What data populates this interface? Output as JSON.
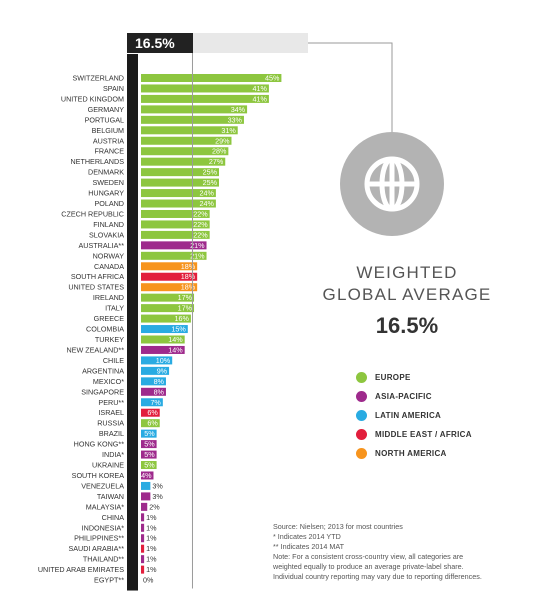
{
  "header": {
    "average_label": "16.5%"
  },
  "summary": {
    "title_line1": "WEIGHTED",
    "title_line2": "GLOBAL AVERAGE",
    "value": "16.5%"
  },
  "icons": {
    "globe": "globe-icon"
  },
  "region_colors": {
    "Europe": "#8dc63f",
    "Asia-Pacific": "#9e2a8c",
    "Latin America": "#29abe2",
    "Middle East / Africa": "#e21e3c",
    "North America": "#f7941d"
  },
  "legend": [
    {
      "label": "EUROPE",
      "color": "#8dc63f"
    },
    {
      "label": "ASIA-PACIFIC",
      "color": "#9e2a8c"
    },
    {
      "label": "LATIN AMERICA",
      "color": "#29abe2"
    },
    {
      "label": "MIDDLE EAST / AFRICA",
      "color": "#e21e3c"
    },
    {
      "label": "NORTH AMERICA",
      "color": "#f7941d"
    }
  ],
  "notes": [
    "Source: Nielsen; 2013 for most countries",
    "* Indicates 2014 YTD",
    "** Indicates 2014 MAT",
    "Note: For a consistent cross-country view, all categories are",
    "weighted equally to produce an average private-label share.",
    "Individual country reporting may vary due to reporting differences."
  ],
  "chart_data": {
    "type": "bar",
    "orientation": "horizontal",
    "reference_line": {
      "label": "16.5%",
      "value": 16.5
    },
    "categories": [
      "SWITZERLAND",
      "SPAIN",
      "UNITED KINGDOM",
      "GERMANY",
      "PORTUGAL",
      "BELGIUM",
      "AUSTRIA",
      "FRANCE",
      "NETHERLANDS",
      "DENMARK",
      "SWEDEN",
      "HUNGARY",
      "POLAND",
      "CZECH REPUBLIC",
      "FINLAND",
      "SLOVAKIA",
      "AUSTRALIA**",
      "NORWAY",
      "CANADA",
      "SOUTH AFRICA",
      "UNITED STATES",
      "IRELAND",
      "ITALY",
      "GREECE",
      "COLOMBIA",
      "TURKEY",
      "NEW ZEALAND**",
      "CHILE",
      "ARGENTINA",
      "MEXICO*",
      "SINGAPORE",
      "PERU**",
      "ISRAEL",
      "RUSSIA",
      "BRAZIL",
      "HONG KONG**",
      "INDIA*",
      "UKRAINE",
      "SOUTH KOREA",
      "VENEZUELA",
      "TAIWAN",
      "MALAYSIA*",
      "CHINA",
      "INDONESIA*",
      "PHILIPPINES**",
      "SAUDI ARABIA**",
      "THAILAND**",
      "UNITED ARAB EMIRATES",
      "EGYPT**"
    ],
    "values": [
      45,
      41,
      41,
      34,
      33,
      31,
      29,
      28,
      27,
      25,
      25,
      24,
      24,
      22,
      22,
      22,
      21,
      21,
      18,
      18,
      18,
      17,
      17,
      16,
      15,
      14,
      14,
      10,
      9,
      8,
      8,
      7,
      6,
      6,
      5,
      5,
      5,
      5,
      4,
      3,
      3,
      2,
      1,
      1,
      1,
      1,
      1,
      1,
      0
    ],
    "value_labels": [
      "45%",
      "41%",
      "41%",
      "34%",
      "33%",
      "31%",
      "29%",
      "28%",
      "27%",
      "25%",
      "25%",
      "24%",
      "24%",
      "22%",
      "22%",
      "22%",
      "21%",
      "21%",
      "18%",
      "18%",
      "18%",
      "17%",
      "17%",
      "16%",
      "15%",
      "14%",
      "14%",
      "10%",
      "9%",
      "8%",
      "8%",
      "7%",
      "6%",
      "6%",
      "5%",
      "5%",
      "5%",
      "5%",
      "4%",
      "3%",
      "3%",
      "2%",
      "1%",
      "1%",
      "1%",
      "1%",
      "1%",
      "1%",
      "0%"
    ],
    "regions": [
      "Europe",
      "Europe",
      "Europe",
      "Europe",
      "Europe",
      "Europe",
      "Europe",
      "Europe",
      "Europe",
      "Europe",
      "Europe",
      "Europe",
      "Europe",
      "Europe",
      "Europe",
      "Europe",
      "Asia-Pacific",
      "Europe",
      "North America",
      "Middle East / Africa",
      "North America",
      "Europe",
      "Europe",
      "Europe",
      "Latin America",
      "Europe",
      "Asia-Pacific",
      "Latin America",
      "Latin America",
      "Latin America",
      "Asia-Pacific",
      "Latin America",
      "Middle East / Africa",
      "Europe",
      "Latin America",
      "Asia-Pacific",
      "Asia-Pacific",
      "Europe",
      "Asia-Pacific",
      "Latin America",
      "Asia-Pacific",
      "Asia-Pacific",
      "Asia-Pacific",
      "Asia-Pacific",
      "Asia-Pacific",
      "Middle East / Africa",
      "Asia-Pacific",
      "Middle East / Africa",
      "Middle East / Africa"
    ],
    "xlim": [
      0,
      45
    ]
  }
}
